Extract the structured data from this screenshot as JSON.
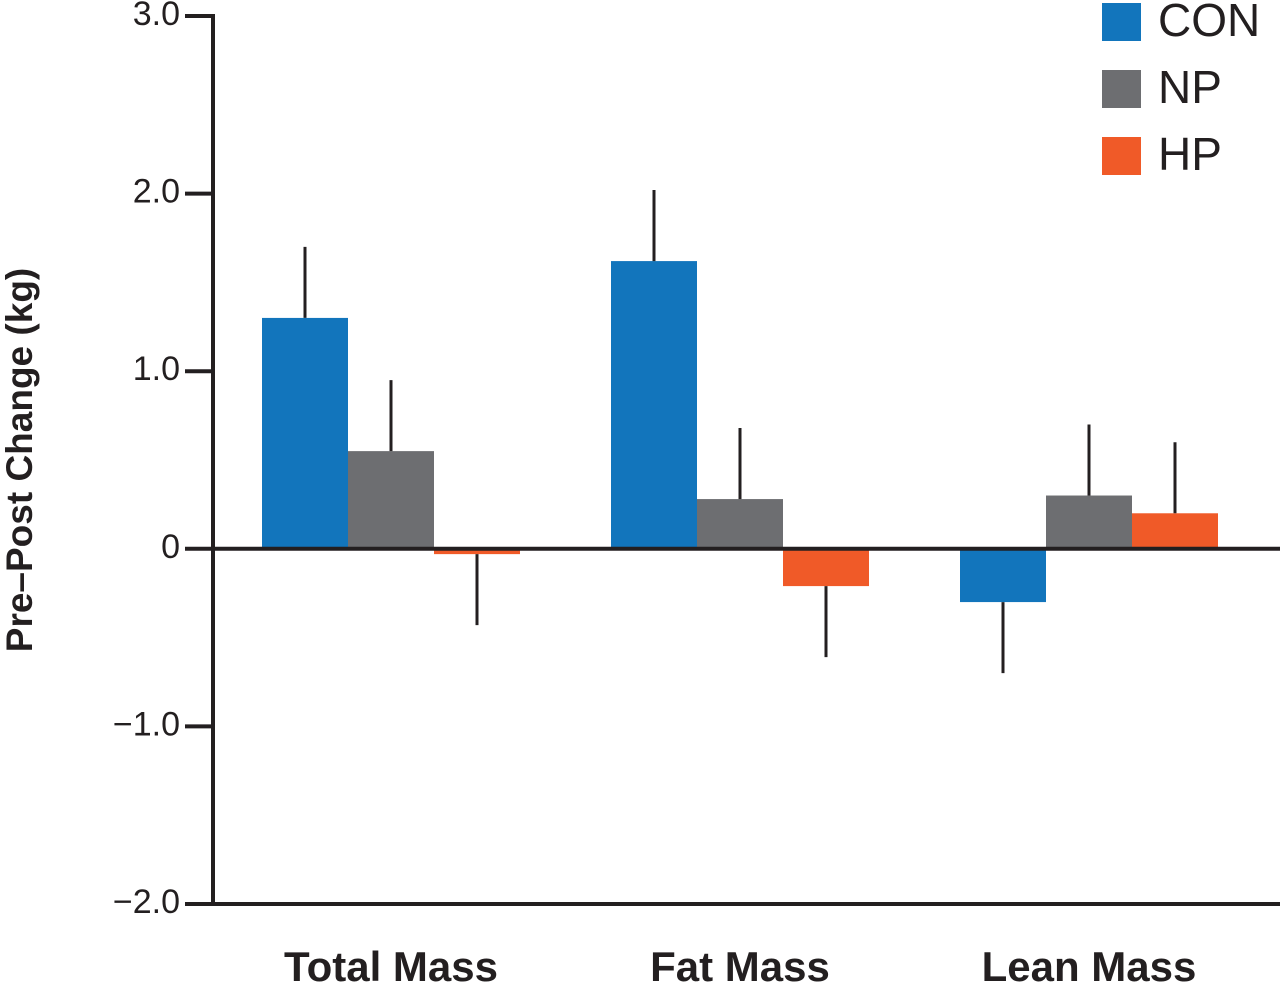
{
  "chart_data": {
    "type": "bar",
    "y_label": "Pre–Post Change (kg)",
    "categories": [
      "Total Mass",
      "Fat Mass",
      "Lean Mass"
    ],
    "series": [
      {
        "name": "CON",
        "color": "#1275bc",
        "values": [
          1.3,
          1.62,
          -0.3
        ],
        "errors": [
          0.4,
          0.4,
          0.4
        ]
      },
      {
        "name": "NP",
        "color": "#6d6e71",
        "values": [
          0.55,
          0.28,
          0.3
        ],
        "errors": [
          0.4,
          0.4,
          0.4
        ]
      },
      {
        "name": "HP",
        "color": "#f05a28",
        "values": [
          -0.03,
          -0.21,
          0.2
        ],
        "errors": [
          0.4,
          0.4,
          0.4
        ]
      }
    ],
    "ylim": [
      -2,
      3
    ],
    "yticks": [
      {
        "value": -2,
        "label": "−2.0"
      },
      {
        "value": -1,
        "label": "−1.0"
      },
      0,
      {
        "value": 1,
        "label": "1.0"
      },
      {
        "value": 2,
        "label": "2.0"
      },
      {
        "value": 3,
        "label": "3.0"
      }
    ],
    "legend": "top-right"
  }
}
